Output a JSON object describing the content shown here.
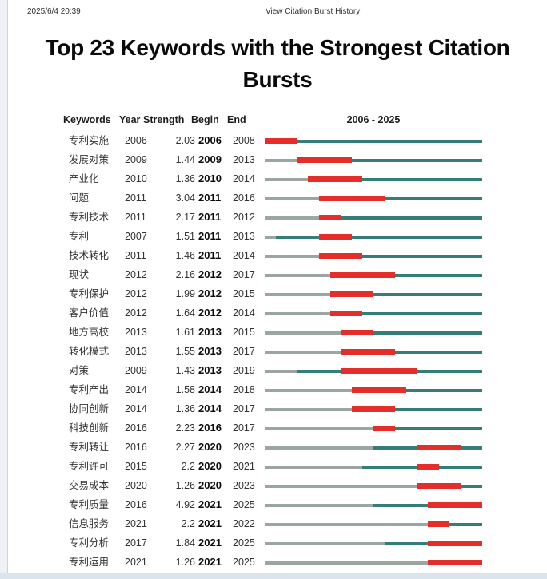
{
  "page": {
    "print_header": {
      "datetime": "2025/6/4 20:39",
      "doc_title": "View Citation Burst History"
    },
    "title": "Top 23 Keywords with the Strongest Citation Bursts"
  },
  "chart_data": {
    "type": "table",
    "title": "Top 23 Keywords with the Strongest Citation Bursts",
    "columns": [
      "Keywords",
      "Year",
      "Strength",
      "Begin",
      "End"
    ],
    "timeline_header": "2006 - 2025",
    "timeline_range": [
      2006,
      2025
    ],
    "colors": {
      "burst": "#e52d29",
      "active": "#357d77",
      "inactive": "#9ba6a3"
    },
    "rows": [
      {
        "keyword": "专利实施",
        "year": 2006,
        "strength": "2.03",
        "begin": 2006,
        "end": 2008
      },
      {
        "keyword": "发展对策",
        "year": 2009,
        "strength": "1.44",
        "begin": 2009,
        "end": 2013
      },
      {
        "keyword": "产业化",
        "year": 2010,
        "strength": "1.36",
        "begin": 2010,
        "end": 2014
      },
      {
        "keyword": "问题",
        "year": 2011,
        "strength": "3.04",
        "begin": 2011,
        "end": 2016
      },
      {
        "keyword": "专利技术",
        "year": 2011,
        "strength": "2.17",
        "begin": 2011,
        "end": 2012
      },
      {
        "keyword": "专利",
        "year": 2007,
        "strength": "1.51",
        "begin": 2011,
        "end": 2013
      },
      {
        "keyword": "技术转化",
        "year": 2011,
        "strength": "1.46",
        "begin": 2011,
        "end": 2014
      },
      {
        "keyword": "现状",
        "year": 2012,
        "strength": "2.16",
        "begin": 2012,
        "end": 2017
      },
      {
        "keyword": "专利保护",
        "year": 2012,
        "strength": "1.99",
        "begin": 2012,
        "end": 2015
      },
      {
        "keyword": "客户价值",
        "year": 2012,
        "strength": "1.64",
        "begin": 2012,
        "end": 2014
      },
      {
        "keyword": "地方高校",
        "year": 2013,
        "strength": "1.61",
        "begin": 2013,
        "end": 2015
      },
      {
        "keyword": "转化模式",
        "year": 2013,
        "strength": "1.55",
        "begin": 2013,
        "end": 2017
      },
      {
        "keyword": "对策",
        "year": 2009,
        "strength": "1.43",
        "begin": 2013,
        "end": 2019
      },
      {
        "keyword": "专利产出",
        "year": 2014,
        "strength": "1.58",
        "begin": 2014,
        "end": 2018
      },
      {
        "keyword": "协同创新",
        "year": 2014,
        "strength": "1.36",
        "begin": 2014,
        "end": 2017
      },
      {
        "keyword": "科技创新",
        "year": 2016,
        "strength": "2.23",
        "begin": 2016,
        "end": 2017
      },
      {
        "keyword": "专利转让",
        "year": 2016,
        "strength": "2.27",
        "begin": 2020,
        "end": 2023
      },
      {
        "keyword": "专利许可",
        "year": 2015,
        "strength": "2.2",
        "begin": 2020,
        "end": 2021
      },
      {
        "keyword": "交易成本",
        "year": 2020,
        "strength": "1.26",
        "begin": 2020,
        "end": 2023
      },
      {
        "keyword": "专利质量",
        "year": 2016,
        "strength": "4.92",
        "begin": 2021,
        "end": 2025
      },
      {
        "keyword": "信息服务",
        "year": 2021,
        "strength": "2.2",
        "begin": 2021,
        "end": 2022
      },
      {
        "keyword": "专利分析",
        "year": 2017,
        "strength": "1.84",
        "begin": 2021,
        "end": 2025
      },
      {
        "keyword": "专利运用",
        "year": 2021,
        "strength": "1.26",
        "begin": 2021,
        "end": 2025
      }
    ]
  }
}
